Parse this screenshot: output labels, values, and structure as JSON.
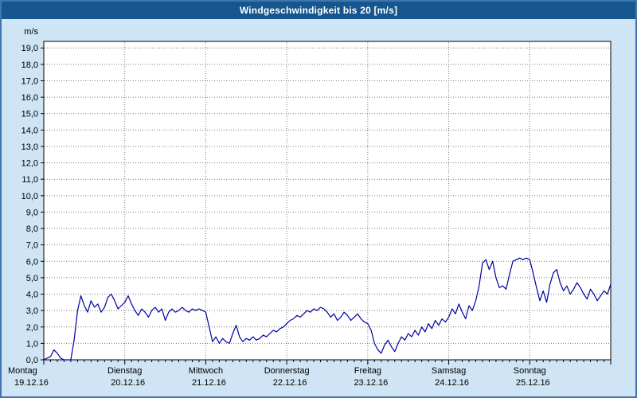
{
  "title": "Windgeschwindigkeit bis 20 [m/s]",
  "colors": {
    "header_bg": "#16568e",
    "header_text": "#ffffff",
    "page_bg": "#cfe4f4",
    "frame": "#3f76ad",
    "plot_bg": "#ffffff",
    "grid": "#7a7a7a",
    "border": "#000000",
    "line": "#0000a0"
  },
  "chart_data": {
    "type": "line",
    "title": "Windgeschwindigkeit bis 20 [m/s]",
    "ylabel": "m/s",
    "xlabel": "",
    "ylim": [
      0,
      19.4
    ],
    "grid": "dotted",
    "legend": "none",
    "y_ticks": [
      0,
      1,
      2,
      3,
      4,
      5,
      6,
      7,
      8,
      9,
      10,
      11,
      12,
      13,
      14,
      15,
      16,
      17,
      18,
      19
    ],
    "y_tick_labels": [
      "0,0",
      "1,0",
      "2,0",
      "3,0",
      "4,0",
      "5,0",
      "6,0",
      "7,0",
      "8,0",
      "9,0",
      "10,0",
      "11,0",
      "12,0",
      "13,0",
      "14,0",
      "15,0",
      "16,0",
      "17,0",
      "18,0",
      "19,0"
    ],
    "x_unit": "hours",
    "x_range_hours": [
      0,
      168
    ],
    "days": [
      {
        "label": "Montag",
        "date": "19.12.16"
      },
      {
        "label": "Dienstag",
        "date": "20.12.16"
      },
      {
        "label": "Mittwoch",
        "date": "21.12.16"
      },
      {
        "label": "Donnerstag",
        "date": "22.12.16"
      },
      {
        "label": "Freitag",
        "date": "23.12.16"
      },
      {
        "label": "Samstag",
        "date": "24.12.16"
      },
      {
        "label": "Sonntag",
        "date": "25.12.16"
      }
    ],
    "series": [
      {
        "name": "Windgeschwindigkeit",
        "step_hours": 1,
        "values": [
          0.0,
          0.1,
          0.2,
          0.6,
          0.4,
          0.1,
          0.0,
          0.0,
          0.0,
          1.2,
          3.0,
          3.9,
          3.3,
          2.9,
          3.6,
          3.2,
          3.4,
          2.9,
          3.2,
          3.8,
          4.0,
          3.6,
          3.1,
          3.3,
          3.5,
          3.9,
          3.4,
          3.0,
          2.7,
          3.1,
          2.9,
          2.6,
          3.0,
          3.2,
          2.9,
          3.1,
          2.4,
          2.9,
          3.1,
          2.9,
          3.0,
          3.2,
          3.0,
          2.9,
          3.1,
          3.0,
          3.1,
          3.0,
          2.9,
          2.0,
          1.1,
          1.4,
          1.0,
          1.3,
          1.1,
          1.0,
          1.6,
          2.1,
          1.4,
          1.1,
          1.3,
          1.2,
          1.4,
          1.2,
          1.3,
          1.5,
          1.4,
          1.6,
          1.8,
          1.7,
          1.9,
          2.0,
          2.2,
          2.4,
          2.5,
          2.7,
          2.6,
          2.8,
          3.0,
          2.9,
          3.1,
          3.0,
          3.2,
          3.1,
          2.9,
          2.6,
          2.8,
          2.4,
          2.6,
          2.9,
          2.7,
          2.4,
          2.6,
          2.8,
          2.5,
          2.3,
          2.2,
          1.8,
          1.0,
          0.6,
          0.4,
          0.9,
          1.2,
          0.8,
          0.5,
          1.0,
          1.4,
          1.2,
          1.6,
          1.4,
          1.8,
          1.5,
          2.0,
          1.7,
          2.2,
          1.9,
          2.4,
          2.1,
          2.5,
          2.3,
          2.6,
          3.1,
          2.8,
          3.4,
          2.9,
          2.5,
          3.3,
          3.0,
          3.6,
          4.5,
          5.9,
          6.1,
          5.5,
          6.0,
          5.0,
          4.4,
          4.5,
          4.3,
          5.2,
          6.0,
          6.1,
          6.2,
          6.1,
          6.2,
          6.1,
          5.3,
          4.4,
          3.6,
          4.2,
          3.5,
          4.6,
          5.3,
          5.5,
          4.7,
          4.2,
          4.5,
          4.0,
          4.3,
          4.7,
          4.4,
          4.0,
          3.7,
          4.3,
          4.0,
          3.6,
          3.9,
          4.2,
          4.0,
          4.6
        ]
      }
    ]
  }
}
